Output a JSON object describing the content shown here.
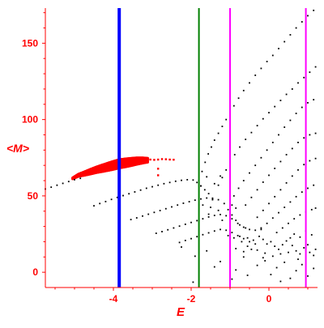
{
  "chart_data": {
    "type": "scatter",
    "title": "",
    "xlabel": "E",
    "ylabel": "<M>",
    "xlim": [
      -5.75,
      1.25
    ],
    "ylim": [
      -10,
      173
    ],
    "x_ticks": [
      -4,
      -2,
      0
    ],
    "x_tick_labels": [
      "-4",
      "-2",
      "0"
    ],
    "y_ticks": [
      0,
      50,
      100,
      150
    ],
    "y_tick_labels": [
      "0",
      "50",
      "100",
      "150"
    ],
    "grid": false,
    "legend": "none",
    "axis_color": "#ff0000",
    "vertical_lines": [
      {
        "x": -3.85,
        "color": "#0000ff"
      },
      {
        "x": -1.8,
        "color": "#008000"
      },
      {
        "x": -1.0,
        "color": "#ff00ff"
      },
      {
        "x": 0.95,
        "color": "#ff00ff"
      }
    ],
    "series": [
      {
        "color": "#ff0000",
        "kind": "band",
        "points": [
          [
            -5.05,
            61.5
          ],
          [
            -4.9,
            63.5
          ],
          [
            -4.75,
            64.6
          ],
          [
            -4.6,
            65.8
          ],
          [
            -4.45,
            67.0
          ],
          [
            -4.3,
            68.0
          ],
          [
            -4.15,
            69.0
          ],
          [
            -4.0,
            70.0
          ],
          [
            -3.85,
            71.0
          ],
          [
            -3.7,
            71.6
          ],
          [
            -3.55,
            72.2
          ],
          [
            -3.4,
            72.8
          ],
          [
            -3.25,
            73.2
          ],
          [
            -3.1,
            73.4
          ]
        ],
        "band_width": [
          0.8,
          1.6,
          2.4,
          3.2,
          3.8,
          4.4,
          5.0,
          5.4,
          5.6,
          5.4,
          5.0,
          4.4,
          3.6,
          2.6
        ]
      },
      {
        "color": "#ff0000",
        "kind": "points",
        "points": [
          [
            -3.05,
            73.8
          ],
          [
            -2.95,
            73.6
          ],
          [
            -2.85,
            73.8
          ],
          [
            -2.75,
            74.1
          ],
          [
            -2.65,
            74.0
          ],
          [
            -2.55,
            73.8
          ],
          [
            -2.45,
            73.7
          ],
          [
            -2.85,
            67.8
          ],
          [
            -2.85,
            63.5
          ]
        ]
      },
      {
        "color": "#000000",
        "kind": "points",
        "points": [
          [
            -5.75,
            54.5
          ],
          [
            -5.6,
            55.7
          ],
          [
            -5.45,
            57.0
          ],
          [
            -5.3,
            58.2
          ],
          [
            -5.15,
            59.4
          ],
          [
            -5.0,
            60.6
          ],
          [
            -4.85,
            61.5
          ]
        ]
      },
      {
        "color": "#000000",
        "kind": "points",
        "points": [
          [
            -4.5,
            43.5
          ],
          [
            -4.35,
            45.0
          ],
          [
            -4.2,
            46.3
          ],
          [
            -4.05,
            47.7
          ],
          [
            -3.9,
            49.0
          ],
          [
            -3.75,
            50.2
          ],
          [
            -3.6,
            51.4
          ],
          [
            -3.45,
            52.6
          ],
          [
            -3.3,
            53.8
          ],
          [
            -3.15,
            55.0
          ],
          [
            -3.0,
            56.0
          ],
          [
            -2.85,
            57.0
          ],
          [
            -2.7,
            58.0
          ],
          [
            -2.55,
            58.8
          ],
          [
            -2.4,
            59.6
          ],
          [
            -2.25,
            60.2
          ],
          [
            -2.1,
            60.6
          ],
          [
            -1.95,
            60.4
          ],
          [
            -1.85,
            58.8
          ],
          [
            -1.75,
            56.5
          ],
          [
            -1.65,
            54.0
          ],
          [
            -1.55,
            51.5
          ],
          [
            -1.45,
            48.0
          ]
        ]
      },
      {
        "color": "#000000",
        "kind": "points",
        "points": [
          [
            -3.55,
            34.5
          ],
          [
            -3.4,
            35.6
          ],
          [
            -3.25,
            36.8
          ],
          [
            -3.1,
            38.0
          ],
          [
            -2.95,
            39.2
          ],
          [
            -2.8,
            40.4
          ],
          [
            -2.65,
            41.6
          ],
          [
            -2.5,
            42.8
          ],
          [
            -2.35,
            44.0
          ],
          [
            -2.2,
            45.2
          ],
          [
            -2.05,
            46.2
          ],
          [
            -1.9,
            47.2
          ],
          [
            -1.75,
            48.0
          ],
          [
            -1.6,
            48.6
          ],
          [
            -1.45,
            48.5
          ],
          [
            -1.3,
            47.5
          ],
          [
            -1.15,
            45.0
          ],
          [
            -1.05,
            41.0
          ],
          [
            -0.95,
            37.5
          ],
          [
            -0.85,
            34.0
          ],
          [
            -0.75,
            31.0
          ],
          [
            -0.6,
            29.0
          ]
        ]
      },
      {
        "color": "#000000",
        "kind": "points",
        "points": [
          [
            -2.9,
            25.5
          ],
          [
            -2.75,
            26.6
          ],
          [
            -2.6,
            27.8
          ],
          [
            -2.45,
            29.0
          ],
          [
            -2.3,
            30.2
          ],
          [
            -2.15,
            31.4
          ],
          [
            -2.0,
            32.6
          ],
          [
            -1.85,
            33.8
          ],
          [
            -1.7,
            35.0
          ],
          [
            -1.55,
            36.2
          ],
          [
            -1.4,
            37.2
          ],
          [
            -1.25,
            37.8
          ],
          [
            -1.1,
            37.0
          ],
          [
            -0.95,
            35.0
          ],
          [
            -0.8,
            32.0
          ],
          [
            -0.65,
            29.5
          ],
          [
            -0.5,
            28.0
          ],
          [
            -0.35,
            27.5
          ],
          [
            -0.2,
            28.0
          ]
        ]
      },
      {
        "color": "#000000",
        "kind": "points",
        "points": [
          [
            -2.3,
            19.5
          ],
          [
            -2.15,
            20.8
          ],
          [
            -2.0,
            22.0
          ],
          [
            -1.85,
            23.3
          ],
          [
            -1.7,
            24.6
          ],
          [
            -1.55,
            25.8
          ],
          [
            -1.4,
            27.0
          ],
          [
            -1.25,
            28.0
          ],
          [
            -1.1,
            27.5
          ],
          [
            -0.95,
            26.0
          ],
          [
            -0.8,
            24.0
          ],
          [
            -0.65,
            22.0
          ],
          [
            -0.5,
            20.0
          ],
          [
            -0.35,
            18.5
          ]
        ]
      },
      {
        "color": "#000000",
        "kind": "points",
        "points": [
          [
            -1.8,
            60
          ],
          [
            -1.72,
            66
          ],
          [
            -1.64,
            72
          ],
          [
            -1.56,
            77.5
          ],
          [
            -1.48,
            82
          ],
          [
            -1.4,
            86.5
          ],
          [
            -1.3,
            91
          ],
          [
            -1.2,
            95.5
          ],
          [
            -1.1,
            100
          ],
          [
            -1.0,
            104.5
          ],
          [
            -0.9,
            109
          ],
          [
            -0.78,
            114
          ],
          [
            -0.65,
            119
          ],
          [
            -0.5,
            124
          ],
          [
            -0.35,
            129
          ],
          [
            -0.2,
            133.5
          ],
          [
            -0.05,
            138
          ],
          [
            0.1,
            142
          ],
          [
            0.25,
            146.5
          ],
          [
            0.4,
            151
          ],
          [
            0.55,
            155.5
          ],
          [
            0.7,
            160
          ],
          [
            0.85,
            164
          ],
          [
            1.0,
            168
          ],
          [
            1.15,
            171.5
          ]
        ]
      },
      {
        "color": "#000000",
        "kind": "points",
        "points": [
          [
            -1.3,
            57
          ],
          [
            -1.2,
            62
          ],
          [
            -1.1,
            67
          ],
          [
            -1.0,
            72
          ],
          [
            -0.88,
            77
          ],
          [
            -0.75,
            82
          ],
          [
            -0.6,
            87
          ],
          [
            -0.45,
            91.5
          ],
          [
            -0.3,
            96
          ],
          [
            -0.15,
            100.5
          ],
          [
            0.0,
            104.5
          ],
          [
            0.15,
            108.5
          ],
          [
            0.3,
            112.5
          ],
          [
            0.45,
            116.5
          ],
          [
            0.6,
            120
          ],
          [
            0.75,
            124
          ],
          [
            0.9,
            127.5
          ],
          [
            1.05,
            131
          ],
          [
            1.2,
            134.5
          ]
        ]
      },
      {
        "color": "#000000",
        "kind": "points",
        "points": [
          [
            -0.9,
            50
          ],
          [
            -0.78,
            55
          ],
          [
            -0.65,
            60
          ],
          [
            -0.5,
            65
          ],
          [
            -0.35,
            70
          ],
          [
            -0.2,
            75
          ],
          [
            -0.05,
            80
          ],
          [
            0.1,
            85
          ],
          [
            0.25,
            90
          ],
          [
            0.4,
            95
          ],
          [
            0.55,
            99.5
          ],
          [
            0.7,
            104
          ],
          [
            0.85,
            108
          ],
          [
            1.0,
            111
          ],
          [
            1.15,
            113
          ]
        ]
      },
      {
        "color": "#000000",
        "kind": "points",
        "points": [
          [
            -0.6,
            44
          ],
          [
            -0.45,
            49
          ],
          [
            -0.3,
            54
          ],
          [
            -0.15,
            59
          ],
          [
            0.0,
            63.5
          ],
          [
            0.15,
            68
          ],
          [
            0.3,
            72.5
          ],
          [
            0.45,
            77
          ],
          [
            0.6,
            81
          ],
          [
            0.75,
            85
          ],
          [
            0.9,
            88
          ],
          [
            1.05,
            90
          ],
          [
            1.2,
            91
          ]
        ]
      },
      {
        "color": "#000000",
        "kind": "points",
        "points": [
          [
            -0.3,
            36
          ],
          [
            -0.15,
            40.5
          ],
          [
            0.0,
            45
          ],
          [
            0.15,
            49.5
          ],
          [
            0.3,
            54
          ],
          [
            0.45,
            58.5
          ],
          [
            0.6,
            63
          ],
          [
            0.75,
            67
          ],
          [
            0.9,
            70.5
          ],
          [
            1.05,
            73
          ],
          [
            1.2,
            74.5
          ]
        ]
      },
      {
        "color": "#000000",
        "kind": "points",
        "points": [
          [
            -0.2,
            29
          ],
          [
            -0.05,
            32
          ],
          [
            0.1,
            35.5
          ],
          [
            0.25,
            39
          ],
          [
            0.4,
            42.5
          ],
          [
            0.55,
            46
          ],
          [
            0.7,
            49.5
          ],
          [
            0.85,
            52.5
          ],
          [
            1.0,
            55
          ],
          [
            1.15,
            57
          ]
        ]
      },
      {
        "color": "#000000",
        "kind": "points",
        "points": [
          [
            0.2,
            26
          ],
          [
            0.35,
            29
          ],
          [
            0.5,
            32
          ],
          [
            0.65,
            35
          ],
          [
            0.8,
            37.5
          ],
          [
            0.95,
            39.5
          ],
          [
            1.1,
            41
          ],
          [
            1.2,
            42
          ]
        ]
      },
      {
        "color": "#000000",
        "kind": "points",
        "points": [
          [
            -1.75,
            56.5
          ],
          [
            -1.6,
            62.5
          ],
          [
            -1.45,
            47.5
          ],
          [
            -1.4,
            58.0
          ],
          [
            -1.25,
            63.0
          ],
          [
            -1.55,
            38.0
          ],
          [
            -1.7,
            44.0
          ],
          [
            -1.5,
            42.5
          ],
          [
            -1.3,
            40.5
          ],
          [
            -0.85,
            42.0
          ],
          [
            -0.95,
            44.0
          ],
          [
            -1.2,
            34.0
          ],
          [
            -1.05,
            24.0
          ],
          [
            -0.9,
            22.5
          ],
          [
            -0.75,
            23.5
          ],
          [
            -0.7,
            20.0
          ],
          [
            -0.55,
            17.0
          ],
          [
            -0.45,
            15.0
          ],
          [
            -0.55,
            22.5
          ],
          [
            -0.4,
            21.0
          ],
          [
            -0.25,
            23.5
          ],
          [
            -0.15,
            21.5
          ],
          [
            -0.05,
            18.5
          ],
          [
            0.05,
            20.0
          ],
          [
            0.15,
            17.0
          ],
          [
            0.25,
            15.0
          ],
          [
            0.35,
            18.0
          ],
          [
            0.45,
            20.5
          ],
          [
            0.55,
            22.5
          ],
          [
            0.6,
            17.5
          ],
          [
            0.7,
            14.0
          ],
          [
            0.8,
            12.0
          ],
          [
            0.9,
            16.0
          ],
          [
            1.0,
            18.0
          ],
          [
            1.05,
            13.0
          ],
          [
            1.15,
            11.0
          ],
          [
            1.2,
            15.0
          ],
          [
            0.5,
            13.0
          ],
          [
            0.3,
            12.0
          ],
          [
            0.1,
            10.5
          ],
          [
            -0.1,
            12.5
          ],
          [
            -0.3,
            14.5
          ],
          [
            -0.65,
            13.5
          ],
          [
            -0.85,
            15.5
          ],
          [
            0.65,
            25.0
          ],
          [
            0.8,
            23.0
          ],
          [
            0.95,
            27.0
          ],
          [
            1.1,
            24.5
          ]
        ]
      },
      {
        "color": "#000000",
        "kind": "points",
        "points": [
          [
            -2.25,
            16.5
          ],
          [
            -1.9,
            10.5
          ],
          [
            -1.4,
            3.5
          ],
          [
            -1.25,
            7.0
          ],
          [
            -0.85,
            1.5
          ],
          [
            -0.65,
            10.0
          ],
          [
            -0.55,
            -2.0
          ],
          [
            -0.3,
            4.5
          ],
          [
            -0.1,
            7.5
          ],
          [
            0.05,
            -1.5
          ],
          [
            0.2,
            3.0
          ],
          [
            0.4,
            6.5
          ],
          [
            0.55,
            -4.0
          ],
          [
            0.7,
            1.0
          ],
          [
            0.85,
            5.0
          ],
          [
            1.0,
            -2.5
          ],
          [
            1.15,
            2.5
          ],
          [
            -1.95,
            -6.5
          ],
          [
            -0.95,
            -4.5
          ],
          [
            0.3,
            -6.0
          ],
          [
            -1.6,
            14.0
          ],
          [
            -0.15,
            9.5
          ],
          [
            0.75,
            8.5
          ]
        ]
      }
    ]
  }
}
